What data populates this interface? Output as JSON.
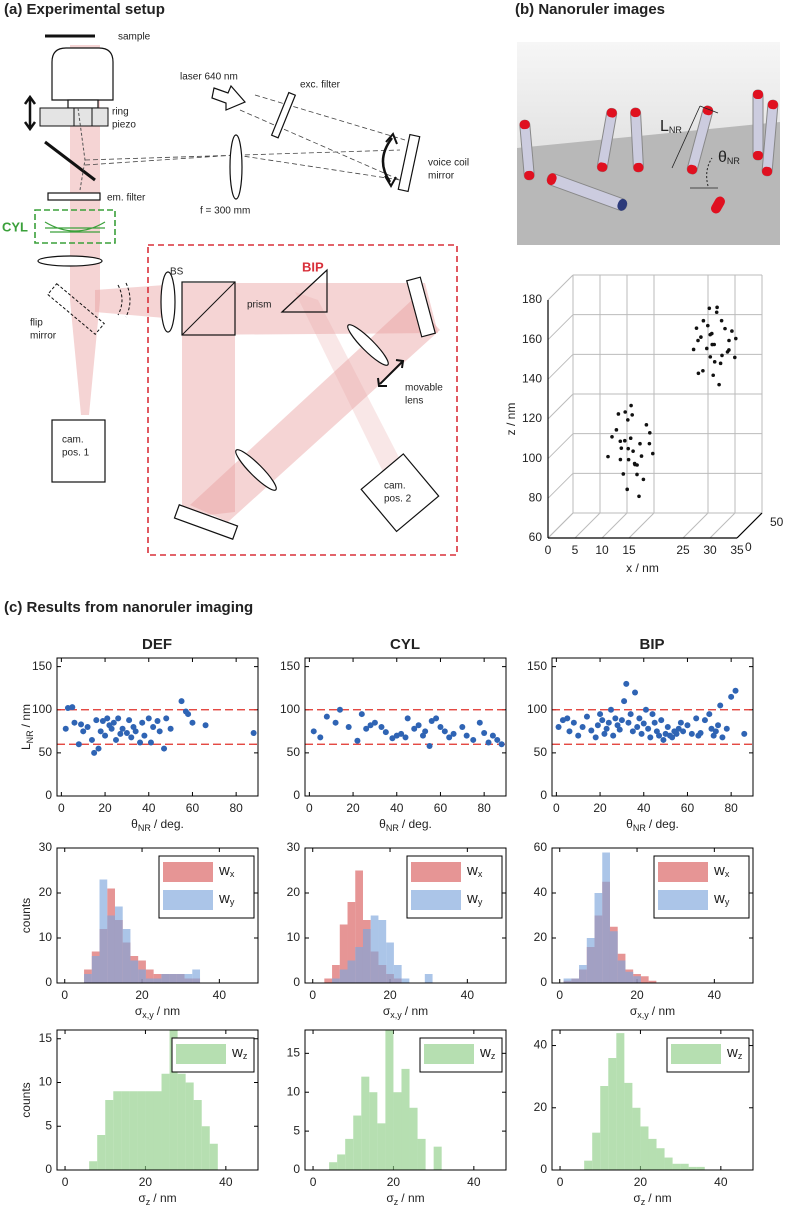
{
  "panel_a": {
    "title": "(a) Experimental setup",
    "labels": {
      "sample": "sample",
      "ring_piezo": [
        "ring",
        "piezo"
      ],
      "laser": "laser 640 nm",
      "exc_filter": "exc. filter",
      "voice_coil_mirror": [
        "voice coil",
        "mirror"
      ],
      "em_filter": "em. filter",
      "focal_length": "f = 300 mm",
      "cyl": "CYL",
      "bip": "BIP",
      "bs": "BS",
      "flip_mirror": [
        "flip",
        "mirror"
      ],
      "movable_lens": [
        "movable",
        "lens"
      ],
      "prism": "prism",
      "cam_pos_1": [
        "cam.",
        "pos. 1"
      ],
      "cam_pos_2": [
        "cam.",
        "pos. 2"
      ]
    }
  },
  "panel_b": {
    "title": "(b) Nanoruler images",
    "image_labels": {
      "length": "L",
      "length_sub": "NR",
      "angle": "θ",
      "angle_sub": "NR"
    }
  },
  "panel_c": {
    "title": "(c) Results from nanoruler imaging",
    "columns": [
      "DEF",
      "CYL",
      "BIP"
    ]
  },
  "chart_data": [
    {
      "type": "scatter3d",
      "zlabel": "z / nm",
      "xlabel": "x / nm",
      "color": "#111111",
      "grid": true,
      "xlim": [
        0,
        35
      ],
      "xticks": [
        0,
        5,
        10,
        15,
        25,
        30,
        35
      ],
      "ylim": [
        0,
        50
      ],
      "yticks": [
        0,
        50
      ],
      "zlim": [
        60,
        180
      ],
      "zticks": [
        60,
        80,
        100,
        120,
        140,
        160,
        180
      ],
      "x": [
        13,
        12,
        15,
        11,
        14,
        16,
        10,
        13,
        15,
        12,
        17,
        14,
        11,
        13,
        16,
        12,
        15,
        14,
        10,
        13,
        17,
        11,
        15,
        14,
        12,
        16,
        13,
        15,
        14,
        12,
        28,
        26,
        30,
        27,
        29,
        25,
        31,
        28,
        26,
        30,
        27,
        29,
        28,
        32,
        24,
        28,
        30,
        26,
        29,
        27,
        31,
        28,
        25,
        30,
        27,
        29,
        26,
        28,
        32,
        27
      ],
      "y": [
        20,
        15,
        25,
        18,
        22,
        30,
        12,
        28,
        16,
        24,
        20,
        10,
        26,
        14,
        18,
        30,
        22,
        27,
        20,
        18,
        26,
        22,
        12,
        19,
        21,
        24,
        25,
        20,
        15,
        17,
        30,
        25,
        35,
        28,
        32,
        30,
        27,
        35,
        20,
        30,
        33,
        25,
        28,
        30,
        32,
        22,
        38,
        30,
        29,
        26,
        33,
        31,
        27,
        24,
        36,
        34,
        29,
        26,
        28,
        31
      ],
      "z": [
        100,
        105,
        95,
        110,
        92,
        100,
        98,
        115,
        88,
        103,
        108,
        97,
        93,
        120,
        85,
        112,
        102,
        90,
        106,
        80,
        96,
        117,
        94,
        99,
        87,
        111,
        104,
        76,
        123,
        101,
        150,
        155,
        145,
        160,
        140,
        152,
        148,
        165,
        138,
        158,
        143,
        170,
        135,
        153,
        147,
        157,
        150,
        162,
        130,
        149,
        156,
        141,
        159,
        146,
        154,
        161,
        137,
        151,
        144,
        168
      ]
    },
    {
      "type": "scatter",
      "xlabel": "θ",
      "xlabel_sub": "NR",
      "xlabel_unit": "/ deg.",
      "ylabel": "L",
      "ylabel_sub": "NR",
      "ylabel_unit": "/ nm",
      "color": "#2f64b4",
      "reference_lines": [
        60,
        100
      ],
      "reference_color": "#e0302a",
      "xlim": [
        -2,
        90
      ],
      "xticks": [
        0,
        20,
        40,
        60,
        80
      ],
      "ylim": [
        0,
        160
      ],
      "yticks": [
        0,
        50,
        100,
        150
      ],
      "x": [
        2,
        3,
        5,
        6,
        8,
        9,
        10,
        12,
        14,
        15,
        16,
        17,
        18,
        19,
        20,
        21,
        22,
        23,
        24,
        25,
        26,
        27,
        28,
        30,
        31,
        32,
        33,
        34,
        36,
        37,
        38,
        40,
        41,
        42,
        44,
        45,
        47,
        48,
        50,
        55,
        57,
        58,
        60,
        66,
        88
      ],
      "values": [
        78,
        102,
        103,
        85,
        60,
        83,
        75,
        80,
        65,
        50,
        88,
        55,
        75,
        87,
        70,
        90,
        82,
        78,
        85,
        65,
        90,
        72,
        78,
        73,
        88,
        68,
        80,
        75,
        62,
        85,
        70,
        90,
        62,
        80,
        87,
        75,
        55,
        90,
        78,
        110,
        98,
        95,
        85,
        82,
        73
      ]
    },
    {
      "type": "scatter",
      "xlabel": "θ",
      "xlabel_sub": "NR",
      "xlabel_unit": "/ deg.",
      "color": "#2f64b4",
      "reference_lines": [
        60,
        100
      ],
      "reference_color": "#e0302a",
      "xlim": [
        -2,
        90
      ],
      "xticks": [
        0,
        20,
        40,
        60,
        80
      ],
      "ylim": [
        0,
        160
      ],
      "yticks": [
        0,
        50,
        100,
        150
      ],
      "x": [
        2,
        5,
        8,
        12,
        14,
        18,
        22,
        24,
        26,
        28,
        30,
        33,
        35,
        38,
        40,
        42,
        44,
        45,
        48,
        50,
        52,
        53,
        55,
        56,
        58,
        60,
        62,
        64,
        66,
        70,
        72,
        75,
        78,
        80,
        82,
        84,
        86,
        88
      ],
      "values": [
        75,
        68,
        92,
        85,
        100,
        80,
        64,
        95,
        78,
        82,
        85,
        80,
        74,
        67,
        70,
        72,
        68,
        90,
        78,
        82,
        70,
        75,
        58,
        87,
        90,
        80,
        75,
        68,
        72,
        80,
        70,
        65,
        85,
        73,
        62,
        70,
        65,
        60
      ]
    },
    {
      "type": "scatter",
      "xlabel": "θ",
      "xlabel_sub": "NR",
      "xlabel_unit": "/ deg.",
      "color": "#2f64b4",
      "reference_lines": [
        60,
        100
      ],
      "reference_color": "#e0302a",
      "xlim": [
        -2,
        90
      ],
      "xticks": [
        0,
        20,
        40,
        60,
        80
      ],
      "ylim": [
        0,
        160
      ],
      "yticks": [
        0,
        50,
        100,
        150
      ],
      "x": [
        1,
        3,
        5,
        6,
        8,
        10,
        12,
        14,
        16,
        18,
        19,
        20,
        21,
        22,
        23,
        24,
        25,
        26,
        27,
        28,
        29,
        30,
        31,
        32,
        33,
        34,
        35,
        36,
        37,
        38,
        39,
        40,
        41,
        42,
        43,
        44,
        45,
        46,
        47,
        48,
        49,
        50,
        51,
        52,
        53,
        54,
        55,
        56,
        57,
        58,
        60,
        62,
        64,
        65,
        66,
        68,
        70,
        71,
        72,
        73,
        74,
        75,
        76,
        78,
        80,
        82,
        86
      ],
      "values": [
        80,
        88,
        90,
        75,
        85,
        70,
        80,
        92,
        76,
        68,
        82,
        95,
        88,
        72,
        78,
        85,
        100,
        70,
        90,
        82,
        77,
        88,
        110,
        130,
        85,
        95,
        75,
        120,
        80,
        90,
        72,
        84,
        100,
        78,
        68,
        95,
        85,
        75,
        70,
        88,
        65,
        72,
        80,
        70,
        68,
        75,
        72,
        78,
        85,
        75,
        82,
        72,
        90,
        70,
        73,
        88,
        95,
        78,
        70,
        75,
        82,
        105,
        68,
        78,
        115,
        122,
        72
      ]
    },
    {
      "type": "histogram",
      "xlabel": "σ",
      "xlabel_sub": "x,y",
      "xlabel_unit": "/ nm",
      "ylabel": "counts",
      "legend": "upper right",
      "xlim": [
        -2,
        50
      ],
      "xticks": [
        0,
        20,
        40
      ],
      "ylim": [
        0,
        30
      ],
      "yticks": [
        0,
        10,
        20,
        30
      ],
      "bins": [
        5,
        7,
        9,
        11,
        13,
        15,
        17,
        19,
        21,
        23,
        25,
        27,
        29,
        31,
        33,
        35
      ],
      "series": [
        {
          "name": "w",
          "name_sub": "x",
          "color": "#d95c5c",
          "values": [
            3,
            7,
            12,
            21,
            14,
            9,
            6,
            5,
            3,
            2,
            2,
            2,
            2,
            1,
            1
          ]
        },
        {
          "name": "w",
          "name_sub": "y",
          "color": "#7ea6dc",
          "values": [
            2,
            6,
            23,
            15,
            17,
            12,
            5,
            3,
            1,
            1,
            2,
            2,
            2,
            2,
            3
          ]
        }
      ]
    },
    {
      "type": "histogram",
      "xlabel": "σ",
      "xlabel_sub": "x,y",
      "xlabel_unit": "/ nm",
      "legend": "upper right",
      "xlim": [
        -2,
        50
      ],
      "xticks": [
        0,
        20,
        40
      ],
      "ylim": [
        0,
        30
      ],
      "yticks": [
        0,
        10,
        20,
        30
      ],
      "bins": [
        3,
        5,
        7,
        9,
        11,
        13,
        15,
        17,
        19,
        21,
        23,
        25,
        27,
        29,
        31
      ],
      "series": [
        {
          "name": "w",
          "name_sub": "x",
          "color": "#d95c5c",
          "values": [
            1,
            4,
            13,
            18,
            25,
            14,
            7,
            4,
            2,
            1,
            0,
            0,
            0,
            0
          ]
        },
        {
          "name": "w",
          "name_sub": "y",
          "color": "#7ea6dc",
          "values": [
            0,
            1,
            3,
            5,
            8,
            12,
            15,
            14,
            9,
            4,
            1,
            0,
            0,
            2
          ]
        }
      ]
    },
    {
      "type": "histogram",
      "xlabel": "σ",
      "xlabel_sub": "x,y",
      "xlabel_unit": "/ nm",
      "legend": "upper right",
      "xlim": [
        -2,
        50
      ],
      "xticks": [
        0,
        20,
        40
      ],
      "ylim": [
        0,
        60
      ],
      "yticks": [
        0,
        20,
        40,
        60
      ],
      "bins": [
        1,
        3,
        5,
        7,
        9,
        11,
        13,
        15,
        17,
        19,
        21,
        23,
        25
      ],
      "series": [
        {
          "name": "w",
          "name_sub": "x",
          "color": "#d95c5c",
          "values": [
            1,
            2,
            6,
            16,
            30,
            45,
            25,
            13,
            6,
            4,
            3,
            1
          ]
        },
        {
          "name": "w",
          "name_sub": "y",
          "color": "#7ea6dc",
          "values": [
            2,
            2,
            8,
            20,
            40,
            58,
            23,
            10,
            5,
            3,
            0,
            0
          ]
        }
      ]
    },
    {
      "type": "histogram",
      "xlabel": "σ",
      "xlabel_sub": "z",
      "xlabel_unit": "/ nm",
      "ylabel": "counts",
      "legend": "upper right",
      "xlim": [
        -2,
        48
      ],
      "xticks": [
        0,
        20,
        40
      ],
      "ylim": [
        0,
        16
      ],
      "yticks": [
        0,
        5,
        10,
        15
      ],
      "bins": [
        6,
        8,
        10,
        12,
        14,
        16,
        18,
        20,
        22,
        24,
        26,
        28,
        30,
        32,
        34,
        36,
        38
      ],
      "series": [
        {
          "name": "w",
          "name_sub": "z",
          "color": "#8fce87",
          "values": [
            1,
            4,
            8,
            9,
            9,
            9,
            9,
            9,
            9,
            11,
            16,
            11,
            10,
            8,
            5,
            3
          ]
        }
      ]
    },
    {
      "type": "histogram",
      "xlabel": "σ",
      "xlabel_sub": "z",
      "xlabel_unit": "/ nm",
      "legend": "upper right",
      "xlim": [
        -2,
        48
      ],
      "xticks": [
        0,
        20,
        40
      ],
      "ylim": [
        0,
        18
      ],
      "yticks": [
        0,
        5,
        10,
        15
      ],
      "bins": [
        4,
        6,
        8,
        10,
        12,
        14,
        16,
        18,
        20,
        22,
        24,
        26,
        28,
        30,
        32
      ],
      "series": [
        {
          "name": "w",
          "name_sub": "z",
          "color": "#8fce87",
          "values": [
            1,
            2,
            4,
            7,
            12,
            10,
            6,
            18,
            10,
            13,
            8,
            4,
            0,
            3
          ]
        }
      ]
    },
    {
      "type": "histogram",
      "xlabel": "σ",
      "xlabel_sub": "z",
      "xlabel_unit": "/ nm",
      "legend": "upper right",
      "xlim": [
        -2,
        48
      ],
      "xticks": [
        0,
        20,
        40
      ],
      "ylim": [
        0,
        45
      ],
      "yticks": [
        0,
        20,
        40
      ],
      "bins": [
        6,
        8,
        10,
        12,
        14,
        16,
        18,
        20,
        22,
        24,
        26,
        28,
        30,
        32,
        34,
        36
      ],
      "series": [
        {
          "name": "w",
          "name_sub": "z",
          "color": "#8fce87",
          "values": [
            3,
            12,
            27,
            36,
            44,
            28,
            20,
            14,
            10,
            7,
            4,
            2,
            2,
            1,
            1
          ]
        }
      ]
    }
  ]
}
